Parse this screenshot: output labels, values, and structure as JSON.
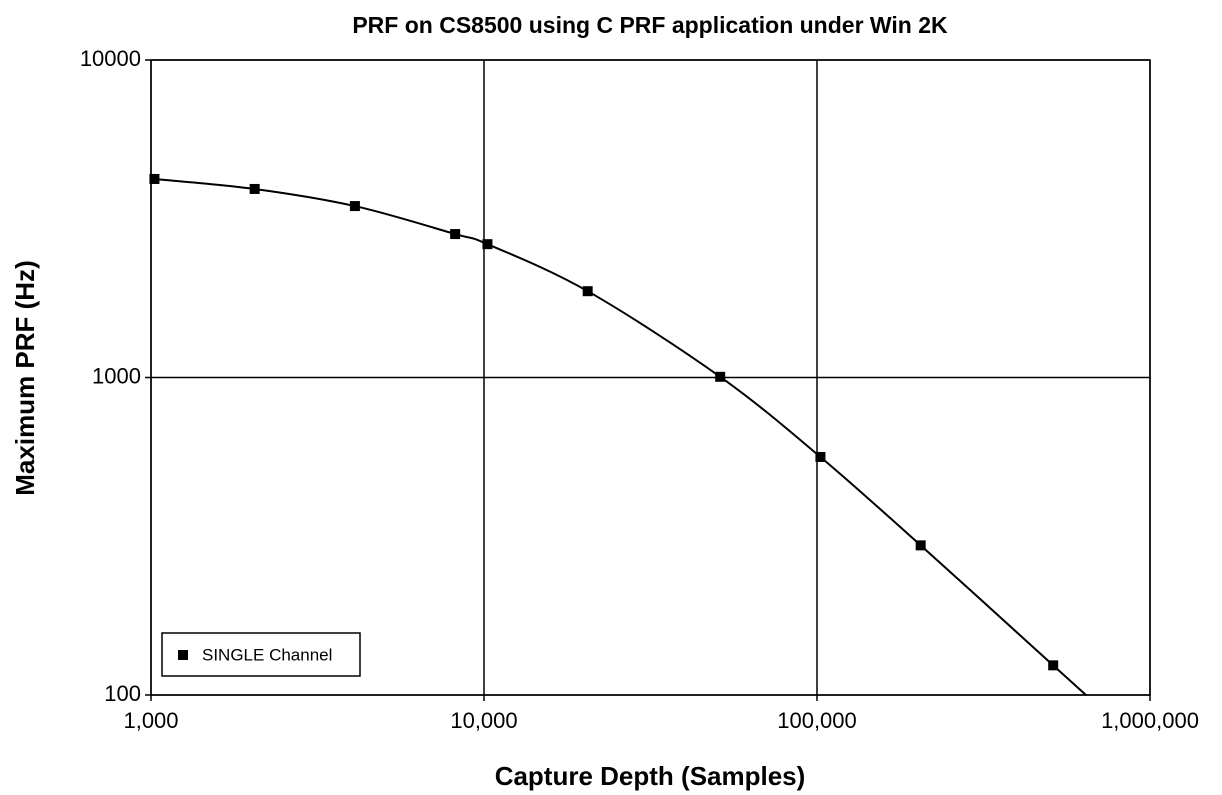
{
  "chart_data": {
    "type": "line",
    "title": "PRF on CS8500 using C PRF application under Win 2K",
    "x_label": "Capture Depth (Samples)",
    "y_label": "Maximum PRF (Hz)",
    "x": [
      1024,
      2048,
      4096,
      8192,
      10240,
      20480,
      51200,
      102400,
      204800,
      512000
    ],
    "series": [
      {
        "name": "SINGLE Channel",
        "color": "#000000",
        "values": [
          4220,
          3925,
          3467,
          2830,
          2630,
          1870,
          1005,
          562,
          296,
          124
        ]
      }
    ],
    "xlim": [
      1000,
      1000000
    ],
    "xticks": [
      {
        "value": 1000,
        "label": "1,000"
      },
      {
        "value": 10000,
        "label": "10,000"
      },
      {
        "value": 100000,
        "label": "100,000"
      },
      {
        "value": 1000000,
        "label": "1,000,000"
      }
    ],
    "ylim": [
      100,
      10000
    ],
    "yticks": [
      100,
      1000,
      10000
    ],
    "x_log": true,
    "y_log": true,
    "grid": true,
    "legend": "lower left"
  }
}
